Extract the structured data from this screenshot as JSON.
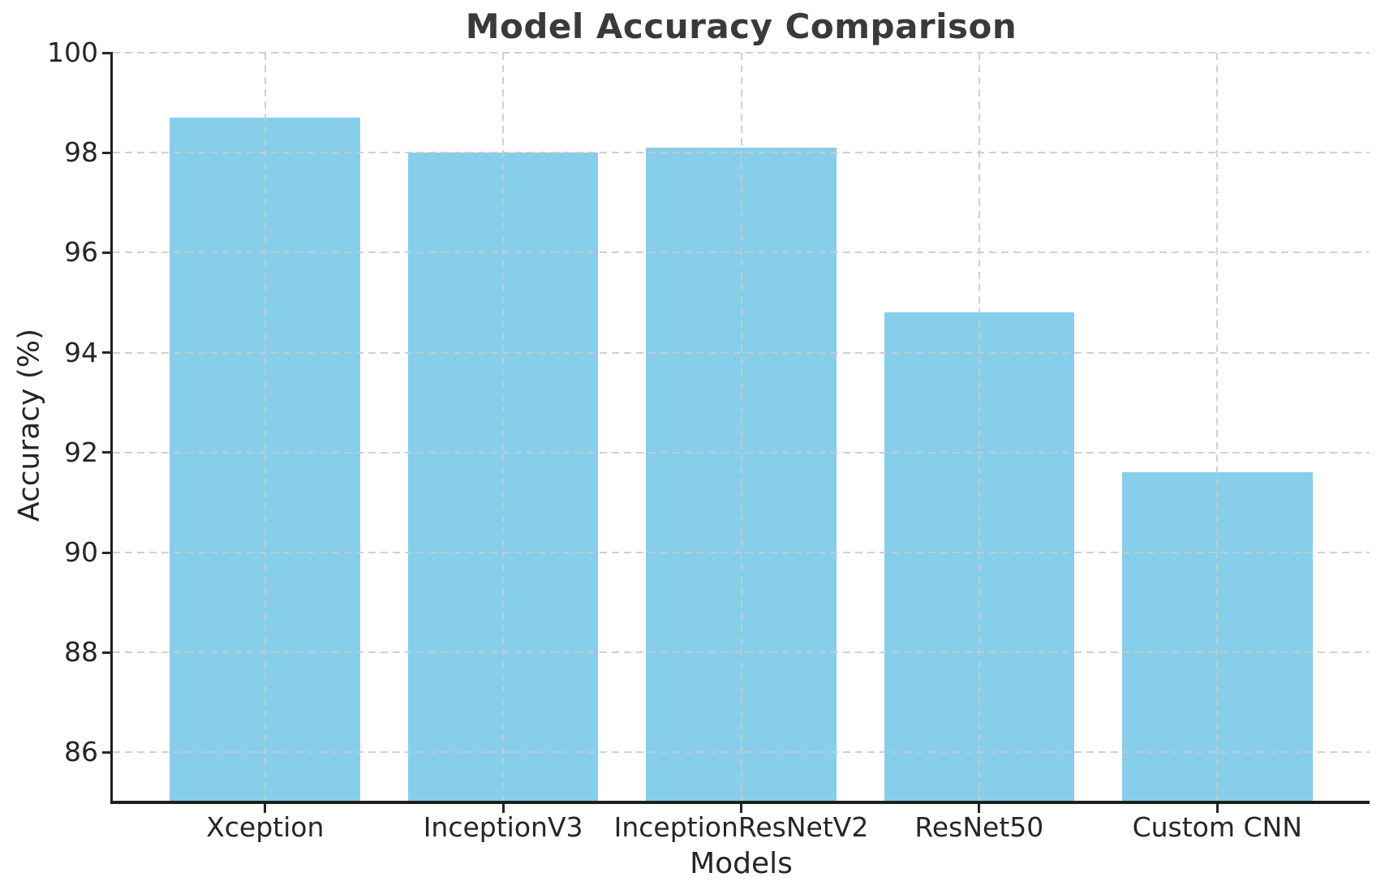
{
  "chart_data": {
    "type": "bar",
    "title": "Model Accuracy Comparison",
    "xlabel": "Models",
    "ylabel": "Accuracy (%)",
    "categories": [
      "Xception",
      "InceptionV3",
      "InceptionResNetV2",
      "ResNet50",
      "Custom CNN"
    ],
    "values": [
      98.7,
      98.0,
      98.1,
      94.8,
      91.6
    ],
    "ylim": [
      85,
      100
    ],
    "yticks": [
      86,
      88,
      90,
      92,
      94,
      96,
      98,
      100
    ],
    "bar_color": "#87CEEB",
    "grid": "on",
    "grid_style": "dashed",
    "grid_color": "#c9c9c9",
    "legend": "none"
  }
}
